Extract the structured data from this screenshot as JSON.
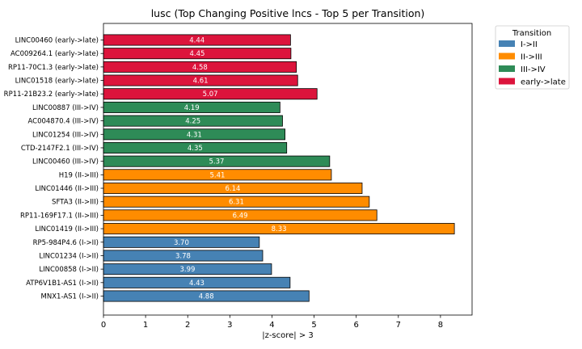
{
  "chart_data": {
    "type": "bar",
    "orientation": "horizontal",
    "title": "lusc (Top Changing Positive lncs - Top 5 per Transition)",
    "xlabel": "|z-score| > 3",
    "ylabel": "",
    "xlim": [
      0,
      8.75
    ],
    "xticks": [
      "0",
      "1",
      "2",
      "3",
      "4",
      "5",
      "6",
      "7",
      "8"
    ],
    "grid": false,
    "legend": {
      "title": "Transition",
      "placement": "outside-top-right",
      "entries": [
        {
          "label": "I->II",
          "color": "#4682b4"
        },
        {
          "label": "II->III",
          "color": "#ff8c00"
        },
        {
          "label": "III->IV",
          "color": "#2e8b57"
        },
        {
          "label": "early->late",
          "color": "#dc143c"
        }
      ]
    },
    "bars": [
      {
        "label": "LINC00460 (early->late)",
        "value": 4.44,
        "value_label": "4.44",
        "group": "early->late"
      },
      {
        "label": "AC009264.1 (early->late)",
        "value": 4.45,
        "value_label": "4.45",
        "group": "early->late"
      },
      {
        "label": "RP11-70C1.3 (early->late)",
        "value": 4.58,
        "value_label": "4.58",
        "group": "early->late"
      },
      {
        "label": "LINC01518 (early->late)",
        "value": 4.61,
        "value_label": "4.61",
        "group": "early->late"
      },
      {
        "label": "RP11-21B23.2 (early->late)",
        "value": 5.07,
        "value_label": "5.07",
        "group": "early->late"
      },
      {
        "label": "LINC00887 (III->IV)",
        "value": 4.19,
        "value_label": "4.19",
        "group": "III->IV"
      },
      {
        "label": "AC004870.4 (III->IV)",
        "value": 4.25,
        "value_label": "4.25",
        "group": "III->IV"
      },
      {
        "label": "LINC01254 (III->IV)",
        "value": 4.31,
        "value_label": "4.31",
        "group": "III->IV"
      },
      {
        "label": "CTD-2147F2.1 (III->IV)",
        "value": 4.35,
        "value_label": "4.35",
        "group": "III->IV"
      },
      {
        "label": "LINC00460 (III->IV)",
        "value": 5.37,
        "value_label": "5.37",
        "group": "III->IV"
      },
      {
        "label": "H19 (II->III)",
        "value": 5.41,
        "value_label": "5.41",
        "group": "II->III"
      },
      {
        "label": "LINC01446 (II->III)",
        "value": 6.14,
        "value_label": "6.14",
        "group": "II->III"
      },
      {
        "label": "SFTA3 (II->III)",
        "value": 6.31,
        "value_label": "6.31",
        "group": "II->III"
      },
      {
        "label": "RP11-169F17.1 (II->III)",
        "value": 6.49,
        "value_label": "6.49",
        "group": "II->III"
      },
      {
        "label": "LINC01419 (II->III)",
        "value": 8.33,
        "value_label": "8.33",
        "group": "II->III"
      },
      {
        "label": "RP5-984P4.6 (I->II)",
        "value": 3.7,
        "value_label": "3.70",
        "group": "I->II"
      },
      {
        "label": "LINC01234 (I->II)",
        "value": 3.78,
        "value_label": "3.78",
        "group": "I->II"
      },
      {
        "label": "LINC00858 (I->II)",
        "value": 3.99,
        "value_label": "3.99",
        "group": "I->II"
      },
      {
        "label": "ATP6V1B1-AS1 (I->II)",
        "value": 4.43,
        "value_label": "4.43",
        "group": "I->II"
      },
      {
        "label": "MNX1-AS1 (I->II)",
        "value": 4.88,
        "value_label": "4.88",
        "group": "I->II"
      }
    ]
  }
}
